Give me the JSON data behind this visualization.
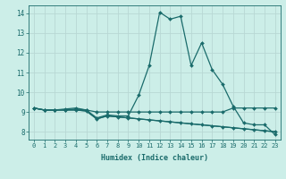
{
  "title": "",
  "xlabel": "Humidex (Indice chaleur)",
  "background_color": "#cceee8",
  "grid_color": "#b8d8d4",
  "line_color": "#1a6b6b",
  "x_values": [
    0,
    1,
    2,
    3,
    4,
    5,
    6,
    7,
    8,
    9,
    10,
    11,
    12,
    13,
    14,
    15,
    16,
    17,
    18,
    19,
    20,
    21,
    22,
    23
  ],
  "series1": [
    9.2,
    9.1,
    9.1,
    9.1,
    9.15,
    9.1,
    8.7,
    8.85,
    8.8,
    8.8,
    9.85,
    11.35,
    14.05,
    13.7,
    13.85,
    11.35,
    12.5,
    11.15,
    10.4,
    9.3,
    8.45,
    8.35,
    8.35,
    7.85
  ],
  "series2": [
    9.2,
    9.1,
    9.1,
    9.15,
    9.2,
    9.1,
    9.0,
    9.0,
    9.0,
    9.0,
    9.0,
    9.0,
    9.0,
    9.0,
    9.0,
    9.0,
    9.0,
    9.0,
    9.0,
    9.2,
    9.2,
    9.2,
    9.2,
    9.2
  ],
  "series3": [
    9.2,
    9.1,
    9.1,
    9.1,
    9.1,
    9.05,
    8.65,
    8.8,
    8.75,
    8.7,
    8.65,
    8.6,
    8.55,
    8.5,
    8.45,
    8.4,
    8.35,
    8.3,
    8.25,
    8.2,
    8.15,
    8.1,
    8.05,
    8.0
  ],
  "series4": [
    9.2,
    9.1,
    9.1,
    9.1,
    9.1,
    9.05,
    8.65,
    8.8,
    8.75,
    8.7,
    8.65,
    8.6,
    8.55,
    8.5,
    8.45,
    8.4,
    8.35,
    8.3,
    8.25,
    8.2,
    8.15,
    8.1,
    8.05,
    8.0
  ],
  "ylim": [
    7.6,
    14.4
  ],
  "yticks": [
    8,
    9,
    10,
    11,
    12,
    13,
    14
  ],
  "xlim": [
    -0.5,
    23.5
  ],
  "figwidth": 3.2,
  "figheight": 2.0,
  "dpi": 100
}
